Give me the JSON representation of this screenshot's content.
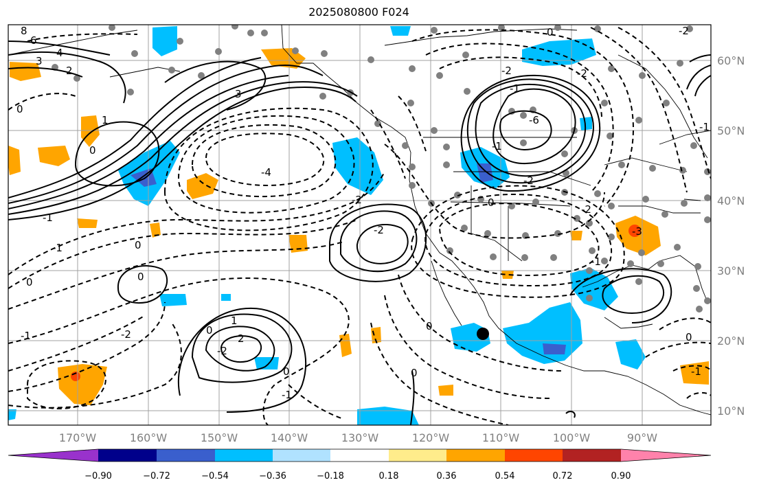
{
  "title": "2025080800 F024",
  "lon_labels": [
    "170°W",
    "160°W",
    "150°W",
    "140°W",
    "130°W",
    "120°W",
    "110°W",
    "100°W",
    "90°W"
  ],
  "lat_labels": [
    "60°N",
    "50°N",
    "40°N",
    "30°N",
    "20°N",
    "10°N"
  ],
  "colorbar": {
    "colors": [
      "#9932cc",
      "#00008b",
      "#3a5fcd",
      "#00bfff",
      "#b0e2ff",
      "#ffffff",
      "#ffec8b",
      "#ffa500",
      "#ff4500",
      "#b22222",
      "#ff82ab"
    ],
    "tick_labels": [
      "−0.90",
      "−0.72",
      "−0.54",
      "−0.36",
      "−0.18",
      "0.18",
      "0.36",
      "0.54",
      "0.72",
      "0.90"
    ]
  },
  "contour_labels": [
    {
      "text": "8"
    },
    {
      "text": "6"
    },
    {
      "text": "4"
    },
    {
      "text": "3"
    },
    {
      "text": "2"
    },
    {
      "text": "0"
    },
    {
      "text": "1"
    },
    {
      "text": "0"
    },
    {
      "text": "-1"
    },
    {
      "text": "3"
    },
    {
      "text": "-4"
    },
    {
      "text": "-2"
    },
    {
      "text": "-1"
    },
    {
      "text": "0"
    },
    {
      "text": "-1"
    },
    {
      "text": "0"
    },
    {
      "text": "-2"
    },
    {
      "text": "0"
    },
    {
      "text": "-2"
    },
    {
      "text": "2"
    },
    {
      "text": "0"
    },
    {
      "text": "1"
    },
    {
      "text": "-1"
    },
    {
      "text": "0"
    },
    {
      "text": "-6"
    },
    {
      "text": "-2"
    },
    {
      "text": "-1"
    },
    {
      "text": "-2"
    },
    {
      "text": "-2"
    },
    {
      "text": "0"
    },
    {
      "text": "-1"
    },
    {
      "text": "-2"
    },
    {
      "text": "-3"
    },
    {
      "text": "0"
    },
    {
      "text": "-1"
    },
    {
      "text": "0"
    },
    {
      "text": "0"
    },
    {
      "text": "-2"
    },
    {
      "text": "-1"
    },
    {
      "text": "-1"
    },
    {
      "text": "-2"
    },
    {
      "text": "0"
    }
  ]
}
